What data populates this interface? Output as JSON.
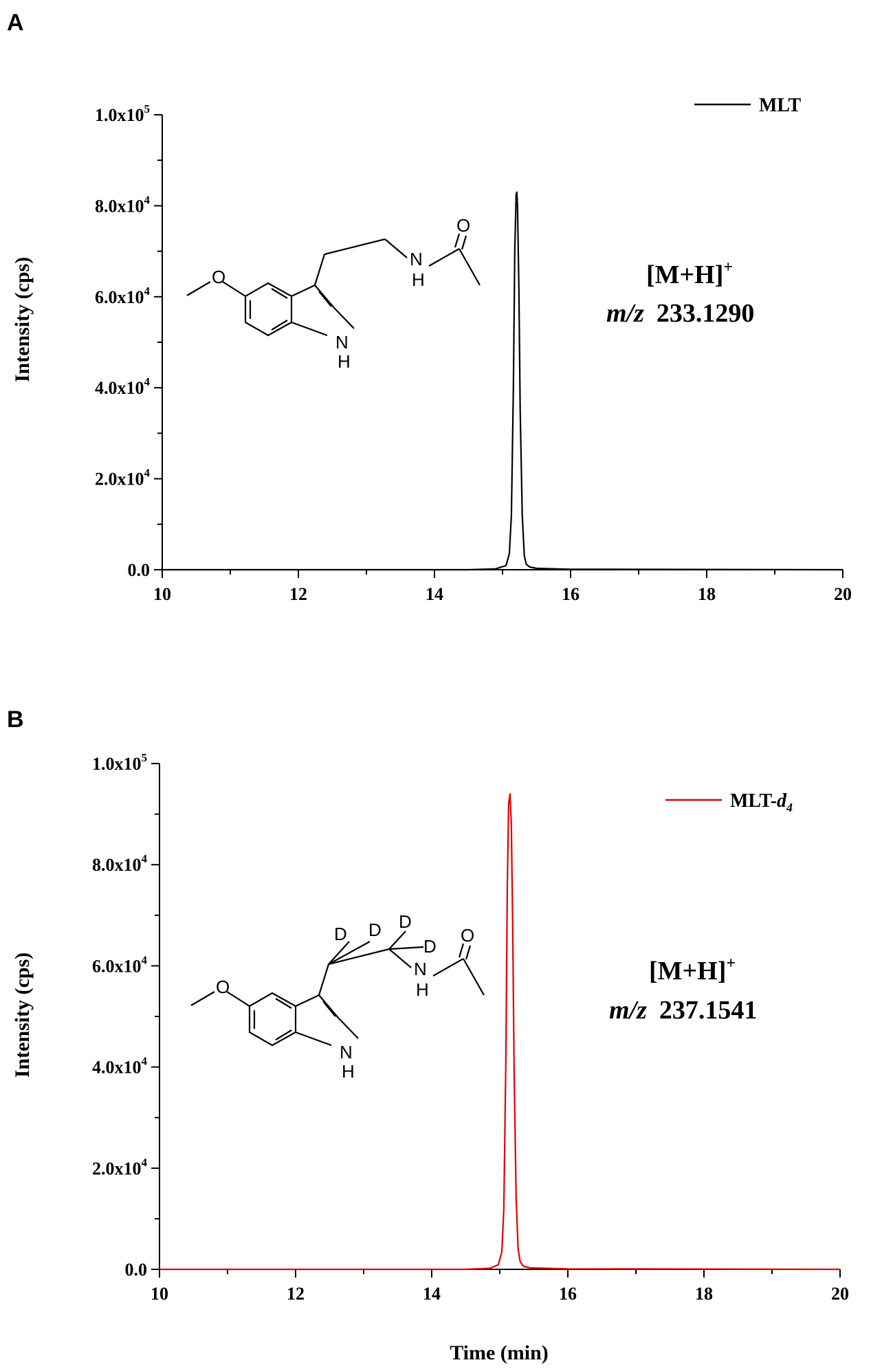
{
  "chart_data": [
    {
      "panel": "A",
      "type": "line",
      "xlabel": "",
      "ylabel": "Intensity (cps)",
      "xlim": [
        10,
        20
      ],
      "ylim": [
        0,
        100000
      ],
      "xticks": [
        10,
        12,
        14,
        16,
        18,
        20
      ],
      "xtick_labels": [
        "10",
        "12",
        "14",
        "16",
        "18",
        "20"
      ],
      "yticks": [
        0,
        20000,
        40000,
        60000,
        80000,
        100000
      ],
      "ytick_labels": [
        {
          "base": "0.0",
          "exp": ""
        },
        {
          "base": "2.0x10",
          "exp": "4"
        },
        {
          "base": "4.0x10",
          "exp": "4"
        },
        {
          "base": "6.0x10",
          "exp": "4"
        },
        {
          "base": "8.0x10",
          "exp": "4"
        },
        {
          "base": "1.0x10",
          "exp": "5"
        }
      ],
      "series": [
        {
          "name": "MLT",
          "color": "#000000",
          "x": [
            10.0,
            14.5,
            14.9,
            15.05,
            15.1,
            15.13,
            15.16,
            15.18,
            15.2,
            15.21,
            15.22,
            15.24,
            15.26,
            15.29,
            15.32,
            15.35,
            15.4,
            15.5,
            16.0,
            20.0
          ],
          "y": [
            0,
            0,
            200,
            900,
            3500,
            12000,
            40000,
            70000,
            82500,
            83000,
            80000,
            62000,
            35000,
            12000,
            3000,
            1200,
            600,
            300,
            100,
            0
          ]
        }
      ],
      "legend": {
        "position": "top-right",
        "label": "MLT",
        "subscript": ""
      },
      "annotation": {
        "ion": "[M+H]",
        "charge": "+",
        "mz_prefix": "m/z",
        "mz_value": "233.1290"
      },
      "structure_labels": [
        "O",
        "N",
        "H",
        "N",
        "H",
        "O"
      ]
    },
    {
      "panel": "B",
      "type": "line",
      "xlabel": "Time (min)",
      "ylabel": "Intensity (cps)",
      "xlim": [
        10,
        20
      ],
      "ylim": [
        0,
        100000
      ],
      "xticks": [
        10,
        12,
        14,
        16,
        18,
        20
      ],
      "xtick_labels": [
        "10",
        "12",
        "14",
        "16",
        "18",
        "20"
      ],
      "yticks": [
        0,
        20000,
        40000,
        60000,
        80000,
        100000
      ],
      "ytick_labels": [
        {
          "base": "0.0",
          "exp": ""
        },
        {
          "base": "2.0x10",
          "exp": "4"
        },
        {
          "base": "4.0x10",
          "exp": "4"
        },
        {
          "base": "6.0x10",
          "exp": "4"
        },
        {
          "base": "8.0x10",
          "exp": "4"
        },
        {
          "base": "1.0x10",
          "exp": "5"
        }
      ],
      "series": [
        {
          "name": "MLT-d4",
          "color": "#e00000",
          "x": [
            10.0,
            14.5,
            14.85,
            14.98,
            15.03,
            15.06,
            15.09,
            15.11,
            15.13,
            15.15,
            15.17,
            15.19,
            15.21,
            15.24,
            15.27,
            15.3,
            15.35,
            15.45,
            16.0,
            20.0
          ],
          "y": [
            0,
            0,
            200,
            900,
            3500,
            12000,
            42000,
            75000,
            92000,
            94000,
            88000,
            68000,
            40000,
            14000,
            4000,
            1500,
            600,
            300,
            100,
            0
          ]
        }
      ],
      "legend": {
        "position": "top-right",
        "label": "MLT-",
        "subscript": "d4"
      },
      "annotation": {
        "ion": "[M+H]",
        "charge": "+",
        "mz_prefix": "m/z",
        "mz_value": "237.1541"
      },
      "structure_labels": [
        "O",
        "N",
        "H",
        "N",
        "H",
        "O",
        "D",
        "D",
        "D",
        "D"
      ]
    }
  ]
}
